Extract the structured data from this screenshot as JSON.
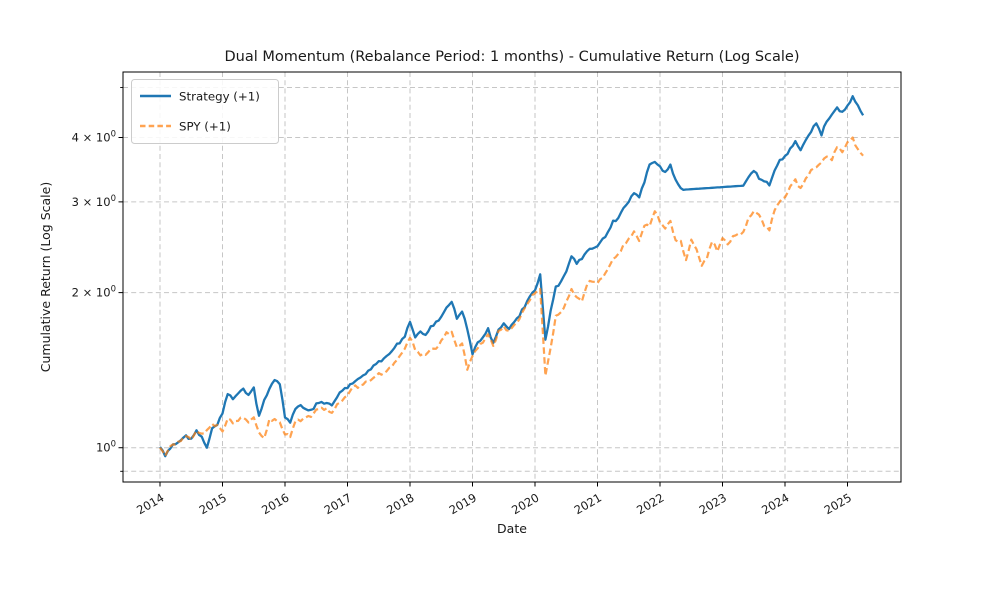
{
  "chart_data": {
    "type": "line",
    "title": "Dual Momentum (Rebalance Period: 1 months) - Cumulative Return (Log Scale)",
    "xlabel": "Date",
    "ylabel": "Cumulative Return (Log Scale)",
    "yscale": "log",
    "xlim": [
      2013.408,
      2025.856
    ],
    "ylim": [
      0.858,
      5.36
    ],
    "grid": {
      "visible": true,
      "which": "both",
      "style": "dashed",
      "color": "#c6c6c6"
    },
    "x_axis": {
      "tick_years": [
        2014,
        2015,
        2016,
        2017,
        2018,
        2019,
        2020,
        2021,
        2022,
        2023,
        2024,
        2025
      ],
      "label_rotation_deg": 30
    },
    "y_axis": {
      "major_ticks": [
        {
          "value": 1,
          "text": "10",
          "sup": "0"
        },
        {
          "value": 2,
          "text": "2 × 10",
          "sup": "0"
        },
        {
          "value": 3,
          "text": "3 × 10",
          "sup": "0"
        },
        {
          "value": 4,
          "text": "4 × 10",
          "sup": "0"
        }
      ],
      "minor_tick_values": [
        0.9,
        5
      ]
    },
    "legend": {
      "position": "upper-left"
    },
    "series": [
      {
        "name": "Strategy (+1)",
        "color": "#1f77b4",
        "line": "solid",
        "width": 2.3,
        "opacity": 1.0,
        "start_year": 2014,
        "interval_months": 1,
        "quiet_ranges": [
          [
            2022.4,
            2023.43
          ]
        ],
        "values": [
          1.0,
          0.962,
          1.0,
          1.015,
          1.035,
          1.055,
          1.04,
          1.085,
          1.05,
          1.0,
          1.09,
          1.105,
          1.17,
          1.27,
          1.24,
          1.275,
          1.3,
          1.27,
          1.31,
          1.15,
          1.24,
          1.3,
          1.355,
          1.33,
          1.14,
          1.12,
          1.19,
          1.21,
          1.19,
          1.18,
          1.22,
          1.23,
          1.22,
          1.21,
          1.25,
          1.29,
          1.31,
          1.33,
          1.36,
          1.38,
          1.41,
          1.45,
          1.47,
          1.49,
          1.52,
          1.56,
          1.6,
          1.64,
          1.75,
          1.64,
          1.68,
          1.66,
          1.72,
          1.75,
          1.8,
          1.87,
          1.92,
          1.78,
          1.83,
          1.7,
          1.52,
          1.6,
          1.64,
          1.7,
          1.6,
          1.7,
          1.74,
          1.7,
          1.75,
          1.8,
          1.88,
          1.96,
          2.02,
          2.17,
          1.62,
          1.85,
          2.05,
          2.1,
          2.2,
          2.35,
          2.28,
          2.32,
          2.4,
          2.44,
          2.46,
          2.55,
          2.62,
          2.75,
          2.8,
          2.92,
          3.0,
          3.12,
          3.05,
          3.28,
          3.55,
          3.58,
          3.52,
          3.42,
          3.55,
          3.32,
          3.18,
          3.17,
          3.175,
          3.18,
          3.185,
          3.19,
          3.195,
          3.2,
          3.205,
          3.21,
          3.215,
          3.22,
          3.225,
          3.35,
          3.45,
          3.32,
          3.28,
          3.24,
          3.45,
          3.62,
          3.68,
          3.8,
          3.95,
          3.78,
          3.95,
          4.1,
          4.25,
          4.05,
          4.3,
          4.42,
          4.58,
          4.48,
          4.62,
          4.82,
          4.6,
          4.42
        ]
      },
      {
        "name": "SPY (+1)",
        "color": "#ff7f0e",
        "line": "dashed",
        "width": 2.2,
        "opacity": 0.72,
        "start_year": 2014,
        "interval_months": 1,
        "quiet_ranges": [],
        "values": [
          1.0,
          0.968,
          1.005,
          1.012,
          1.032,
          1.052,
          1.038,
          1.078,
          1.062,
          1.085,
          1.112,
          1.108,
          1.075,
          1.135,
          1.118,
          1.128,
          1.142,
          1.12,
          1.142,
          1.073,
          1.046,
          1.134,
          1.138,
          1.118,
          1.062,
          1.052,
          1.122,
          1.126,
          1.145,
          1.148,
          1.19,
          1.192,
          1.192,
          1.17,
          1.214,
          1.238,
          1.26,
          1.31,
          1.31,
          1.325,
          1.345,
          1.365,
          1.392,
          1.4,
          1.428,
          1.462,
          1.506,
          1.552,
          1.64,
          1.548,
          1.508,
          1.515,
          1.552,
          1.56,
          1.618,
          1.67,
          1.68,
          1.565,
          1.596,
          1.42,
          1.5,
          1.56,
          1.6,
          1.66,
          1.58,
          1.68,
          1.72,
          1.69,
          1.73,
          1.78,
          1.86,
          1.93,
          2.0,
          2.03,
          1.38,
          1.56,
          1.8,
          1.84,
          1.92,
          2.03,
          1.96,
          1.92,
          2.08,
          2.1,
          2.08,
          2.14,
          2.22,
          2.33,
          2.38,
          2.47,
          2.55,
          2.63,
          2.52,
          2.7,
          2.68,
          2.88,
          2.74,
          2.66,
          2.76,
          2.52,
          2.52,
          2.32,
          2.53,
          2.43,
          2.25,
          2.33,
          2.52,
          2.4,
          2.55,
          2.48,
          2.57,
          2.61,
          2.62,
          2.79,
          2.88,
          2.83,
          2.7,
          2.64,
          2.88,
          3.01,
          3.06,
          3.22,
          3.32,
          3.18,
          3.34,
          3.46,
          3.5,
          3.58,
          3.66,
          3.62,
          3.84,
          3.74,
          3.92,
          3.99,
          3.8,
          3.7
        ]
      }
    ]
  }
}
